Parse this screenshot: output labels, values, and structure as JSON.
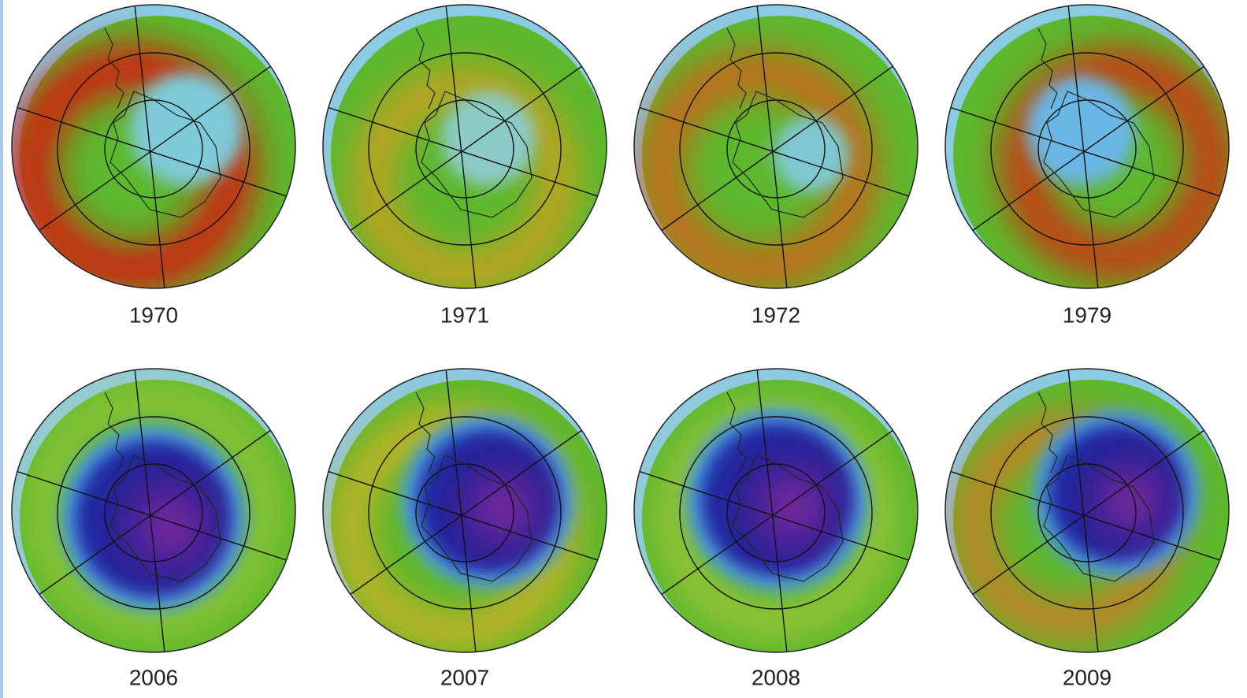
{
  "panels": [
    {
      "label": "1970"
    },
    {
      "label": "1971"
    },
    {
      "label": "1972"
    },
    {
      "label": "1979"
    },
    {
      "label": "2006"
    },
    {
      "label": "2007"
    },
    {
      "label": "2008"
    },
    {
      "label": "2009"
    }
  ]
}
